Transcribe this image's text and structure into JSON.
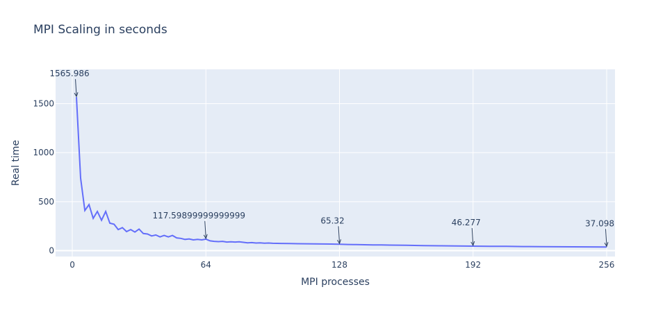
{
  "chart_data": {
    "type": "line",
    "title": "MPI Scaling in seconds",
    "xlabel": "MPI processes",
    "ylabel": "Real time",
    "xlim": [
      -8,
      260
    ],
    "ylim": [
      -60,
      1850
    ],
    "xticks": [
      0,
      64,
      128,
      192,
      256
    ],
    "yticks": [
      0,
      500,
      1000,
      1500
    ],
    "grid": true,
    "line_color": "#636efa",
    "plot_bg": "#e5ecf6",
    "series": [
      {
        "x": [
          2,
          4,
          6,
          8,
          10,
          12,
          14,
          16,
          18,
          20,
          22,
          24,
          26,
          28,
          30,
          32,
          34,
          36,
          38,
          40,
          42,
          44,
          46,
          48,
          50,
          52,
          54,
          56,
          58,
          60,
          62,
          64,
          66,
          68,
          70,
          72,
          74,
          76,
          78,
          80,
          82,
          84,
          86,
          88,
          90,
          92,
          94,
          96,
          100,
          104,
          108,
          112,
          116,
          120,
          124,
          128,
          132,
          136,
          140,
          144,
          148,
          152,
          156,
          160,
          168,
          176,
          184,
          192,
          200,
          208,
          216,
          224,
          232,
          240,
          248,
          256
        ],
        "y": [
          1565.986,
          740,
          410,
          470,
          330,
          400,
          310,
          400,
          280,
          270,
          215,
          235,
          195,
          215,
          190,
          220,
          175,
          170,
          150,
          160,
          140,
          155,
          140,
          155,
          130,
          125,
          115,
          120,
          110,
          115,
          110,
          117.599,
          100,
          95,
          92,
          95,
          88,
          90,
          88,
          90,
          85,
          80,
          82,
          78,
          80,
          76,
          78,
          75,
          74,
          72,
          71,
          70,
          69,
          68,
          67,
          65.32,
          63,
          62,
          60,
          59,
          58,
          57,
          56,
          55,
          52,
          50,
          48,
          46.277,
          45,
          44,
          42,
          41,
          40,
          39,
          38,
          37.098
        ]
      }
    ],
    "annotations": [
      {
        "x": 2,
        "y": 1565.986,
        "text": "1565.986"
      },
      {
        "x": 64,
        "y": 117.599,
        "text": "117.59899999999999"
      },
      {
        "x": 128,
        "y": 65.32,
        "text": "65.32"
      },
      {
        "x": 192,
        "y": 46.277,
        "text": "46.277"
      },
      {
        "x": 256,
        "y": 37.098,
        "text": "37.098"
      }
    ]
  }
}
